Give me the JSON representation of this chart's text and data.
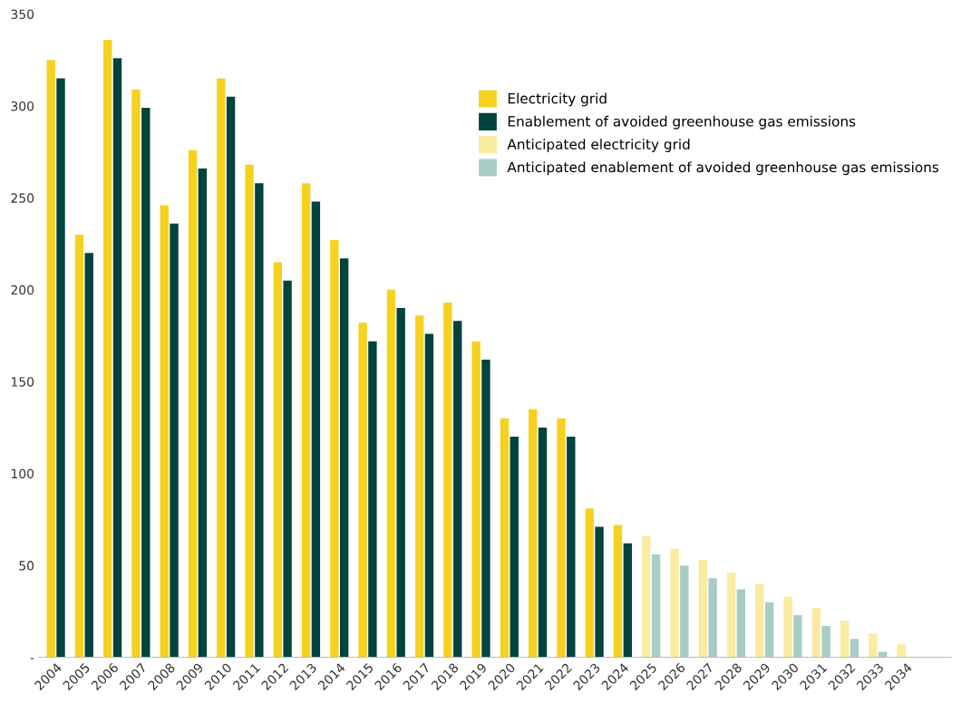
{
  "chart_data": {
    "type": "bar",
    "categories": [
      "2004",
      "2005",
      "2006",
      "2007",
      "2008",
      "2009",
      "2010",
      "2011",
      "2012",
      "2013",
      "2014",
      "2015",
      "2016",
      "2017",
      "2018",
      "2019",
      "2020",
      "2021",
      "2022",
      "2023",
      "2024",
      "2025",
      "2026",
      "2027",
      "2028",
      "2029",
      "2030",
      "2031",
      "2032",
      "2033",
      "2034"
    ],
    "series": [
      {
        "name": "Electricity grid",
        "color": "#f5d21f",
        "values": [
          325,
          230,
          336,
          309,
          246,
          276,
          315,
          268,
          215,
          258,
          227,
          182,
          200,
          186,
          193,
          172,
          130,
          135,
          130,
          81,
          72,
          null,
          null,
          null,
          null,
          null,
          null,
          null,
          null,
          null,
          null
        ]
      },
      {
        "name": "Enablement of avoided greenhouse gas emissions",
        "color": "#00433f",
        "values": [
          315,
          220,
          326,
          299,
          236,
          266,
          305,
          258,
          205,
          248,
          217,
          172,
          190,
          176,
          183,
          162,
          120,
          125,
          120,
          71,
          62,
          null,
          null,
          null,
          null,
          null,
          null,
          null,
          null,
          null,
          null
        ]
      },
      {
        "name": "Anticipated electricity grid",
        "color": "#fbeba0",
        "values": [
          null,
          null,
          null,
          null,
          null,
          null,
          null,
          null,
          null,
          null,
          null,
          null,
          null,
          null,
          null,
          null,
          null,
          null,
          null,
          null,
          null,
          66,
          59,
          53,
          46,
          40,
          33,
          27,
          20,
          13,
          7
        ]
      },
      {
        "name": "Anticipated enablement of avoided greenhouse gas emissions",
        "color": "#a7cdc5",
        "values": [
          null,
          null,
          null,
          null,
          null,
          null,
          null,
          null,
          null,
          null,
          null,
          null,
          null,
          null,
          null,
          null,
          null,
          null,
          null,
          null,
          null,
          56,
          50,
          43,
          37,
          30,
          23,
          17,
          10,
          3,
          null
        ]
      }
    ],
    "ylim": [
      0,
      350
    ],
    "yticks": [
      {
        "value": 0,
        "label": "-"
      },
      50,
      100,
      150,
      200,
      250,
      300,
      350
    ],
    "grid": false,
    "legend": "top right"
  }
}
